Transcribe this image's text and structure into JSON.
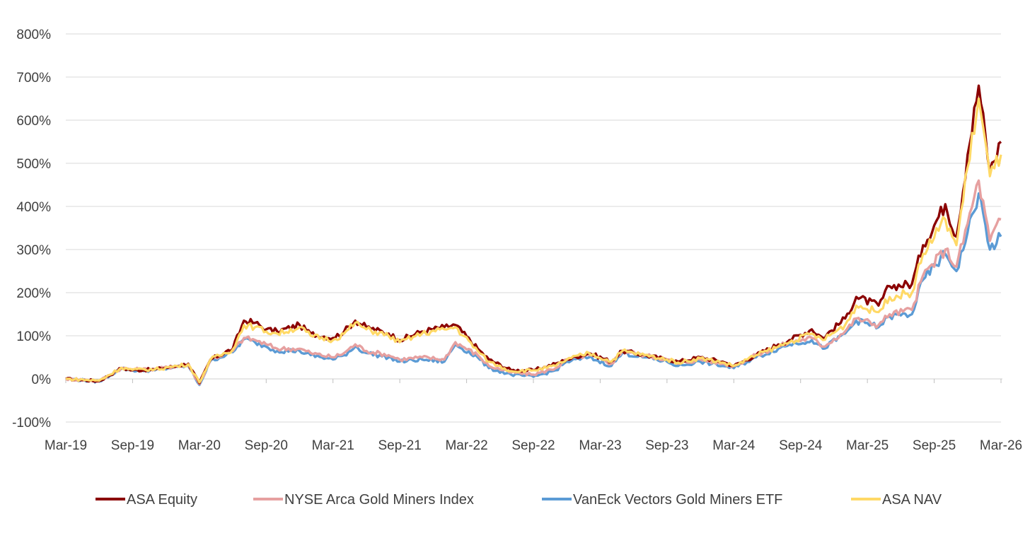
{
  "chart_data": {
    "type": "line",
    "title": "",
    "xlabel": "",
    "ylabel": "",
    "ylim": [
      -100,
      800
    ],
    "y_ticks": [
      -100,
      0,
      100,
      200,
      300,
      400,
      500,
      600,
      700,
      800
    ],
    "y_tick_labels": [
      "-100%",
      "0%",
      "100%",
      "200%",
      "300%",
      "400%",
      "500%",
      "600%",
      "700%",
      "800%"
    ],
    "x_tick_labels": [
      "Mar-19",
      "Sep-19",
      "Mar-20",
      "Sep-20",
      "Mar-21",
      "Sep-21",
      "Mar-22",
      "Sep-22",
      "Mar-23",
      "Sep-23",
      "Mar-24",
      "Sep-24",
      "Mar-25",
      "Sep-25",
      "Mar-26"
    ],
    "grid": "horizontal",
    "legend_position": "bottom",
    "series": [
      {
        "name": "ASA Equity",
        "color": "#8B0000",
        "x": [
          "Mar-19",
          "Jun-19",
          "Aug-19",
          "Sep-19",
          "Nov-19",
          "Jan-20",
          "Feb-20",
          "Mar-20",
          "Apr-20",
          "Jun-20",
          "Jul-20",
          "Aug-20",
          "Sep-20",
          "Oct-20",
          "Dec-20",
          "Jan-21",
          "Mar-21",
          "Apr-21",
          "May-21",
          "Jun-21",
          "Aug-21",
          "Sep-21",
          "Nov-21",
          "Jan-22",
          "Feb-22",
          "Apr-22",
          "May-22",
          "Jul-22",
          "Sep-22",
          "Nov-22",
          "Dec-22",
          "Feb-23",
          "Apr-23",
          "May-23",
          "Jul-23",
          "Sep-23",
          "Oct-23",
          "Dec-23",
          "Feb-24",
          "Mar-24",
          "May-24",
          "Jul-24",
          "Aug-24",
          "Oct-24",
          "Nov-24",
          "Jan-25",
          "Feb-25",
          "Apr-25",
          "May-25",
          "Jul-25",
          "Aug-25",
          "Oct-25",
          "Nov-25",
          "Dec-25",
          "Jan-26",
          "Feb-26",
          "Mar-26"
        ],
        "values": [
          0,
          -5,
          25,
          20,
          22,
          30,
          35,
          -10,
          45,
          70,
          135,
          130,
          115,
          110,
          125,
          105,
          95,
          110,
          135,
          120,
          105,
          90,
          110,
          120,
          125,
          70,
          45,
          20,
          20,
          35,
          45,
          60,
          40,
          65,
          55,
          45,
          40,
          50,
          40,
          30,
          55,
          80,
          90,
          115,
          95,
          140,
          190,
          170,
          215,
          220,
          310,
          405,
          330,
          520,
          680,
          480,
          550
        ]
      },
      {
        "name": "NYSE Arca Gold Miners Index",
        "color": "#E6A0A0",
        "x": [
          "Mar-19",
          "Jun-19",
          "Aug-19",
          "Sep-19",
          "Nov-19",
          "Jan-20",
          "Feb-20",
          "Mar-20",
          "Apr-20",
          "Jun-20",
          "Jul-20",
          "Aug-20",
          "Sep-20",
          "Oct-20",
          "Dec-20",
          "Jan-21",
          "Mar-21",
          "Apr-21",
          "May-21",
          "Jun-21",
          "Aug-21",
          "Sep-21",
          "Nov-21",
          "Jan-22",
          "Feb-22",
          "Apr-22",
          "May-22",
          "Jul-22",
          "Sep-22",
          "Nov-22",
          "Dec-22",
          "Feb-23",
          "Apr-23",
          "May-23",
          "Jul-23",
          "Sep-23",
          "Oct-23",
          "Dec-23",
          "Feb-24",
          "Mar-24",
          "May-24",
          "Jul-24",
          "Aug-24",
          "Oct-24",
          "Nov-24",
          "Jan-25",
          "Feb-25",
          "Apr-25",
          "May-25",
          "Jul-25",
          "Aug-25",
          "Oct-25",
          "Nov-25",
          "Dec-25",
          "Jan-26",
          "Feb-26",
          "Mar-26"
        ],
        "values": [
          0,
          -5,
          25,
          22,
          22,
          30,
          32,
          -12,
          45,
          65,
          95,
          90,
          80,
          70,
          70,
          60,
          50,
          60,
          80,
          65,
          55,
          45,
          50,
          45,
          85,
          55,
          30,
          15,
          10,
          25,
          45,
          55,
          35,
          65,
          55,
          45,
          35,
          45,
          35,
          30,
          55,
          75,
          85,
          95,
          75,
          110,
          140,
          125,
          150,
          160,
          240,
          300,
          260,
          360,
          460,
          320,
          370
        ]
      },
      {
        "name": "VanEck Vectors Gold Miners ETF",
        "color": "#5B9BD5",
        "x": [
          "Mar-19",
          "Jun-19",
          "Aug-19",
          "Sep-19",
          "Nov-19",
          "Jan-20",
          "Feb-20",
          "Mar-20",
          "Apr-20",
          "Jun-20",
          "Jul-20",
          "Aug-20",
          "Sep-20",
          "Oct-20",
          "Dec-20",
          "Jan-21",
          "Mar-21",
          "Apr-21",
          "May-21",
          "Jun-21",
          "Aug-21",
          "Sep-21",
          "Nov-21",
          "Jan-22",
          "Feb-22",
          "Apr-22",
          "May-22",
          "Jul-22",
          "Sep-22",
          "Nov-22",
          "Dec-22",
          "Feb-23",
          "Apr-23",
          "May-23",
          "Jul-23",
          "Sep-23",
          "Oct-23",
          "Dec-23",
          "Feb-24",
          "Mar-24",
          "May-24",
          "Jul-24",
          "Aug-24",
          "Oct-24",
          "Nov-24",
          "Jan-25",
          "Feb-25",
          "Apr-25",
          "May-25",
          "Jul-25",
          "Aug-25",
          "Oct-25",
          "Nov-25",
          "Dec-25",
          "Jan-26",
          "Feb-26",
          "Mar-26"
        ],
        "values": [
          0,
          -6,
          24,
          20,
          20,
          28,
          30,
          -14,
          42,
          62,
          92,
          85,
          75,
          65,
          65,
          55,
          45,
          55,
          75,
          60,
          50,
          40,
          45,
          40,
          80,
          50,
          25,
          10,
          5,
          20,
          40,
          50,
          30,
          60,
          50,
          40,
          30,
          40,
          30,
          25,
          50,
          70,
          80,
          90,
          70,
          105,
          135,
          120,
          145,
          150,
          230,
          290,
          250,
          340,
          430,
          300,
          330
        ]
      },
      {
        "name": "ASA NAV",
        "color": "#FFD966",
        "x": [
          "Mar-19",
          "Jun-19",
          "Aug-19",
          "Sep-19",
          "Nov-19",
          "Jan-20",
          "Feb-20",
          "Mar-20",
          "Apr-20",
          "Jun-20",
          "Jul-20",
          "Aug-20",
          "Sep-20",
          "Oct-20",
          "Dec-20",
          "Jan-21",
          "Mar-21",
          "Apr-21",
          "May-21",
          "Jun-21",
          "Aug-21",
          "Sep-21",
          "Nov-21",
          "Jan-22",
          "Feb-22",
          "Apr-22",
          "May-22",
          "Jul-22",
          "Sep-22",
          "Nov-22",
          "Dec-22",
          "Feb-23",
          "Apr-23",
          "May-23",
          "Jul-23",
          "Sep-23",
          "Oct-23",
          "Dec-23",
          "Feb-24",
          "Mar-24",
          "May-24",
          "Jul-24",
          "Aug-24",
          "Oct-24",
          "Nov-24",
          "Jan-25",
          "Feb-25",
          "Apr-25",
          "May-25",
          "Jul-25",
          "Aug-25",
          "Oct-25",
          "Nov-25",
          "Dec-25",
          "Jan-26",
          "Feb-26",
          "Mar-26"
        ],
        "values": [
          0,
          -4,
          26,
          21,
          22,
          30,
          34,
          -8,
          45,
          68,
          125,
          120,
          110,
          105,
          120,
          100,
          90,
          105,
          130,
          115,
          100,
          85,
          105,
          115,
          120,
          65,
          40,
          18,
          20,
          30,
          45,
          60,
          40,
          65,
          55,
          45,
          38,
          48,
          38,
          30,
          55,
          75,
          85,
          105,
          90,
          125,
          170,
          155,
          190,
          200,
          290,
          370,
          310,
          490,
          650,
          470,
          520
        ]
      }
    ]
  }
}
